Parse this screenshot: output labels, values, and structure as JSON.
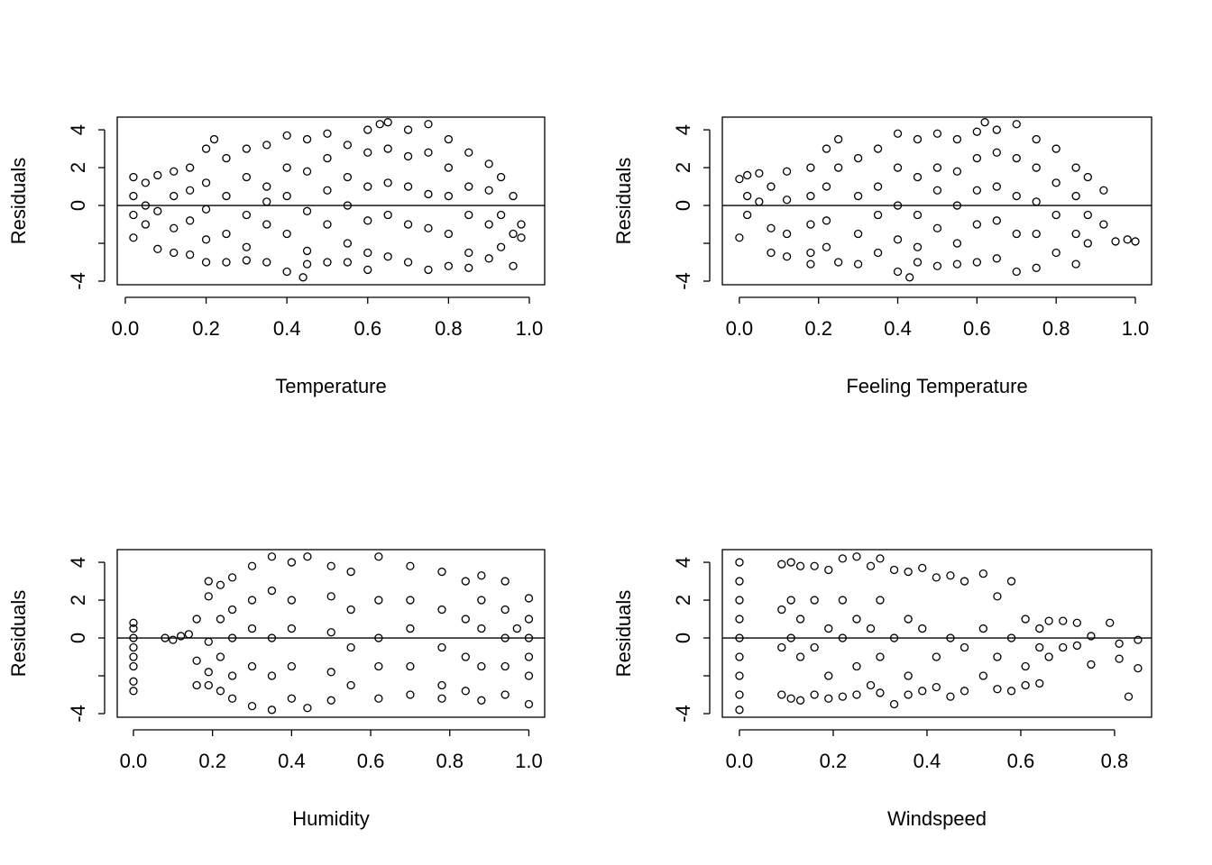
{
  "chart_data": [
    {
      "type": "scatter",
      "xlabel": "Temperature",
      "ylabel": "Residuals",
      "color": "#000000",
      "reference_line": 0,
      "xlim": [
        -0.02,
        1.038
      ],
      "ylim": [
        -4.19,
        4.67
      ],
      "xticks": [
        {
          "value": 0,
          "label": "0.0"
        },
        {
          "value": 0.2,
          "label": "0.2"
        },
        {
          "value": 0.4,
          "label": "0.4"
        },
        {
          "value": 0.6,
          "label": "0.6"
        },
        {
          "value": 0.8,
          "label": "0.8"
        },
        {
          "value": 1,
          "label": "1.0"
        }
      ],
      "yticks": [
        -4,
        0,
        2,
        4
      ],
      "yticks_unlabeled": [
        -2
      ],
      "x": [
        0.02,
        0.02,
        0.02,
        0.02,
        0.05,
        0.05,
        0.05,
        0.08,
        0.08,
        0.08,
        0.12,
        0.12,
        0.12,
        0.12,
        0.16,
        0.16,
        0.16,
        0.16,
        0.2,
        0.2,
        0.2,
        0.2,
        0.2,
        0.22,
        0.25,
        0.25,
        0.25,
        0.25,
        0.3,
        0.3,
        0.3,
        0.3,
        0.3,
        0.35,
        0.35,
        0.35,
        0.35,
        0.35,
        0.4,
        0.4,
        0.4,
        0.4,
        0.4,
        0.44,
        0.45,
        0.45,
        0.45,
        0.45,
        0.45,
        0.5,
        0.5,
        0.5,
        0.5,
        0.5,
        0.55,
        0.55,
        0.55,
        0.55,
        0.55,
        0.6,
        0.6,
        0.6,
        0.6,
        0.6,
        0.6,
        0.63,
        0.65,
        0.65,
        0.65,
        0.65,
        0.65,
        0.7,
        0.7,
        0.7,
        0.7,
        0.7,
        0.75,
        0.75,
        0.75,
        0.75,
        0.75,
        0.8,
        0.8,
        0.8,
        0.8,
        0.8,
        0.85,
        0.85,
        0.85,
        0.85,
        0.85,
        0.9,
        0.9,
        0.9,
        0.9,
        0.93,
        0.93,
        0.93,
        0.96,
        0.96,
        0.96,
        0.98,
        0.98
      ],
      "y": [
        1.5,
        0.5,
        -0.5,
        -1.7,
        1.2,
        0,
        -1,
        1.6,
        -0.3,
        -2.3,
        1.8,
        0.5,
        -1.2,
        -2.5,
        2.0,
        0.8,
        -0.8,
        -2.6,
        3.0,
        1.2,
        -0.2,
        -1.8,
        -3.0,
        3.5,
        2.5,
        0.5,
        -1.5,
        -3.0,
        3.0,
        1.5,
        -0.5,
        -2.2,
        -2.9,
        3.2,
        1.0,
        0.2,
        -1.0,
        -3.0,
        3.7,
        2.0,
        0.5,
        -1.5,
        -3.5,
        -3.8,
        3.5,
        1.8,
        -0.3,
        -2.4,
        -3.1,
        3.8,
        2.5,
        0.8,
        -1.0,
        -3.0,
        3.2,
        1.5,
        0,
        -2.0,
        -3.0,
        4.0,
        2.8,
        1.0,
        -0.8,
        -2.5,
        -3.4,
        4.3,
        4.4,
        3.0,
        1.2,
        -0.5,
        -2.7,
        4.0,
        2.6,
        1.0,
        -1.0,
        -3.0,
        4.3,
        2.8,
        0.6,
        -1.2,
        -3.4,
        3.5,
        2.0,
        0.5,
        -1.5,
        -3.2,
        2.8,
        1.0,
        -0.5,
        -2.5,
        -3.3,
        2.2,
        0.8,
        -1.0,
        -2.8,
        1.5,
        -0.5,
        -2.2,
        0.5,
        -1.5,
        -3.2,
        -1.0,
        -1.7
      ]
    },
    {
      "type": "scatter",
      "xlabel": "Feeling Temperature",
      "ylabel": "Residuals",
      "color": "#000000",
      "reference_line": 0,
      "xlim": [
        -0.043,
        1.041
      ],
      "ylim": [
        -4.19,
        4.67
      ],
      "xticks": [
        {
          "value": 0,
          "label": "0.0"
        },
        {
          "value": 0.2,
          "label": "0.2"
        },
        {
          "value": 0.4,
          "label": "0.4"
        },
        {
          "value": 0.6,
          "label": "0.6"
        },
        {
          "value": 0.8,
          "label": "0.8"
        },
        {
          "value": 1,
          "label": "1.0"
        }
      ],
      "yticks": [
        -4,
        0,
        2,
        4
      ],
      "yticks_unlabeled": [
        -2
      ],
      "x": [
        0,
        0,
        0.02,
        0.02,
        0.02,
        0.05,
        0.05,
        0.08,
        0.08,
        0.08,
        0.12,
        0.12,
        0.12,
        0.12,
        0.18,
        0.18,
        0.18,
        0.18,
        0.18,
        0.22,
        0.22,
        0.22,
        0.22,
        0.25,
        0.25,
        0.25,
        0.3,
        0.3,
        0.3,
        0.3,
        0.35,
        0.35,
        0.35,
        0.35,
        0.4,
        0.4,
        0.4,
        0.4,
        0.4,
        0.43,
        0.45,
        0.45,
        0.45,
        0.45,
        0.45,
        0.5,
        0.5,
        0.5,
        0.5,
        0.5,
        0.55,
        0.55,
        0.55,
        0.55,
        0.55,
        0.6,
        0.6,
        0.6,
        0.6,
        0.6,
        0.62,
        0.65,
        0.65,
        0.65,
        0.65,
        0.65,
        0.7,
        0.7,
        0.7,
        0.7,
        0.7,
        0.75,
        0.75,
        0.75,
        0.75,
        0.75,
        0.8,
        0.8,
        0.8,
        0.8,
        0.85,
        0.85,
        0.85,
        0.85,
        0.88,
        0.88,
        0.88,
        0.92,
        0.92,
        0.95,
        0.98,
        1.0
      ],
      "y": [
        1.4,
        -1.7,
        1.6,
        0.5,
        -0.5,
        1.7,
        0.2,
        1.0,
        -1.2,
        -2.5,
        1.8,
        0.3,
        -1.5,
        -2.7,
        2.0,
        0.5,
        -1.0,
        -2.5,
        -3.1,
        3.0,
        1.0,
        -0.8,
        -2.2,
        3.5,
        2.0,
        -3.0,
        2.5,
        0.5,
        -1.5,
        -3.1,
        3.0,
        1.0,
        -0.5,
        -2.5,
        3.8,
        2.0,
        0,
        -1.8,
        -3.5,
        -3.8,
        3.5,
        1.5,
        -0.5,
        -2.2,
        -3.0,
        3.8,
        2.0,
        0.8,
        -1.2,
        -3.2,
        3.5,
        1.8,
        0,
        -2.0,
        -3.1,
        3.9,
        2.5,
        0.8,
        -1.0,
        -3.0,
        4.4,
        4.0,
        2.8,
        1.0,
        -0.8,
        -2.8,
        4.3,
        2.5,
        0.5,
        -1.5,
        -3.5,
        3.5,
        2.0,
        0.2,
        -1.5,
        -3.3,
        3.0,
        1.2,
        -0.5,
        -2.5,
        2.0,
        0.5,
        -1.5,
        -3.1,
        1.5,
        -0.5,
        -2.0,
        0.8,
        -1.0,
        -1.9,
        -1.8,
        -1.9
      ]
    },
    {
      "type": "scatter",
      "xlabel": "Humidity",
      "ylabel": "Residuals",
      "color": "#000000",
      "reference_line": 0,
      "xlim": [
        -0.041,
        1.04
      ],
      "ylim": [
        -4.19,
        4.67
      ],
      "xticks": [
        {
          "value": 0,
          "label": "0.0"
        },
        {
          "value": 0.2,
          "label": "0.2"
        },
        {
          "value": 0.4,
          "label": "0.4"
        },
        {
          "value": 0.6,
          "label": "0.6"
        },
        {
          "value": 0.8,
          "label": "0.8"
        },
        {
          "value": 1,
          "label": "1.0"
        }
      ],
      "yticks": [
        -4,
        0,
        2,
        4
      ],
      "yticks_unlabeled": [
        -2
      ],
      "x": [
        0,
        0,
        0,
        0,
        0,
        0,
        0,
        0,
        0.08,
        0.1,
        0.12,
        0.14,
        0.16,
        0.16,
        0.16,
        0.19,
        0.19,
        0.19,
        0.19,
        0.19,
        0.22,
        0.22,
        0.22,
        0.22,
        0.25,
        0.25,
        0.25,
        0.25,
        0.25,
        0.3,
        0.3,
        0.3,
        0.3,
        0.3,
        0.35,
        0.35,
        0.35,
        0.35,
        0.35,
        0.4,
        0.4,
        0.4,
        0.4,
        0.4,
        0.44,
        0.44,
        0.5,
        0.5,
        0.5,
        0.5,
        0.5,
        0.55,
        0.55,
        0.55,
        0.55,
        0.62,
        0.62,
        0.62,
        0.62,
        0.62,
        0.7,
        0.7,
        0.7,
        0.7,
        0.7,
        0.78,
        0.78,
        0.78,
        0.78,
        0.78,
        0.84,
        0.84,
        0.84,
        0.84,
        0.88,
        0.88,
        0.88,
        0.88,
        0.88,
        0.94,
        0.94,
        0.94,
        0.94,
        0.94,
        0.97,
        1.0,
        1.0,
        1.0,
        1.0,
        1.0,
        1.0
      ],
      "y": [
        0.8,
        0.5,
        0,
        -0.5,
        -1.0,
        -1.5,
        -2.3,
        -2.8,
        0,
        -0.1,
        0.1,
        0.2,
        1.0,
        -1.2,
        -2.5,
        2.2,
        3.0,
        -0.2,
        -1.8,
        -2.5,
        2.8,
        1.0,
        -1.0,
        -2.8,
        3.2,
        1.5,
        0,
        -2.0,
        -3.2,
        3.8,
        2.0,
        0.5,
        -1.5,
        -3.6,
        4.3,
        2.5,
        0,
        -2.0,
        -3.8,
        4.0,
        2.0,
        0.5,
        -1.5,
        -3.2,
        4.3,
        -3.7,
        3.8,
        2.2,
        0.3,
        -1.8,
        -3.3,
        3.5,
        1.5,
        -0.5,
        -2.5,
        4.3,
        2.0,
        0,
        -1.5,
        -3.2,
        3.8,
        2.0,
        0.5,
        -1.5,
        -3.0,
        3.5,
        1.5,
        -0.5,
        -2.5,
        -3.2,
        3.0,
        1.0,
        -1.0,
        -2.8,
        3.3,
        2.0,
        0.5,
        -1.5,
        -3.3,
        3.0,
        1.5,
        0,
        -1.5,
        -3.0,
        0.5,
        2.1,
        1.0,
        0,
        -1.0,
        -2.0,
        -3.5
      ]
    },
    {
      "type": "scatter",
      "xlabel": "Windspeed",
      "ylabel": "Residuals",
      "color": "#000000",
      "reference_line": 0,
      "xlim": [
        -0.0365,
        0.879
      ],
      "ylim": [
        -4.19,
        4.67
      ],
      "xticks": [
        {
          "value": 0,
          "label": "0.0"
        },
        {
          "value": 0.2,
          "label": "0.2"
        },
        {
          "value": 0.4,
          "label": "0.4"
        },
        {
          "value": 0.6,
          "label": "0.6"
        },
        {
          "value": 0.8,
          "label": "0.8"
        }
      ],
      "yticks": [
        -4,
        0,
        2,
        4
      ],
      "yticks_unlabeled": [
        -2
      ],
      "x": [
        0,
        0,
        0,
        0,
        0,
        0,
        0,
        0,
        0,
        0.09,
        0.09,
        0.09,
        0.09,
        0.11,
        0.11,
        0.11,
        0.11,
        0.13,
        0.13,
        0.13,
        0.13,
        0.16,
        0.16,
        0.16,
        0.16,
        0.19,
        0.19,
        0.19,
        0.19,
        0.22,
        0.22,
        0.22,
        0.22,
        0.25,
        0.25,
        0.25,
        0.25,
        0.28,
        0.28,
        0.28,
        0.3,
        0.3,
        0.3,
        0.3,
        0.33,
        0.33,
        0.33,
        0.36,
        0.36,
        0.36,
        0.36,
        0.39,
        0.39,
        0.39,
        0.42,
        0.42,
        0.42,
        0.45,
        0.45,
        0.45,
        0.48,
        0.48,
        0.48,
        0.52,
        0.52,
        0.52,
        0.55,
        0.55,
        0.55,
        0.58,
        0.58,
        0.58,
        0.61,
        0.61,
        0.61,
        0.64,
        0.64,
        0.64,
        0.66,
        0.66,
        0.69,
        0.69,
        0.72,
        0.72,
        0.75,
        0.75,
        0.79,
        0.81,
        0.81,
        0.83,
        0.85,
        0.85
      ],
      "y": [
        4,
        3,
        2,
        1,
        0,
        -1,
        -2,
        -3,
        -3.8,
        3.9,
        1.5,
        -0.5,
        -3.0,
        4.0,
        2.0,
        0,
        -3.2,
        3.8,
        1.0,
        -1.0,
        -3.3,
        3.8,
        2.0,
        -0.5,
        -3.0,
        3.6,
        0.5,
        -2.0,
        -3.2,
        4.2,
        2.0,
        0,
        -3.1,
        4.3,
        1.0,
        -1.5,
        -3.0,
        3.8,
        0.5,
        -2.5,
        4.2,
        2.0,
        -1.0,
        -2.9,
        3.6,
        0,
        -3.5,
        3.5,
        1.0,
        -2.0,
        -3.0,
        3.7,
        0.5,
        -2.8,
        3.2,
        -1.0,
        -2.6,
        3.3,
        0,
        -3.1,
        3.0,
        -0.5,
        -2.8,
        3.4,
        0.5,
        -2.0,
        2.2,
        -1.0,
        -2.7,
        3.0,
        0,
        -2.8,
        1.0,
        -1.5,
        -2.5,
        0.5,
        -0.5,
        -2.4,
        0.9,
        -1.0,
        0.9,
        -0.5,
        0.8,
        -0.4,
        0.1,
        -1.4,
        0.8,
        -0.3,
        -1.1,
        -3.1,
        -0.1,
        -1.6
      ]
    }
  ]
}
